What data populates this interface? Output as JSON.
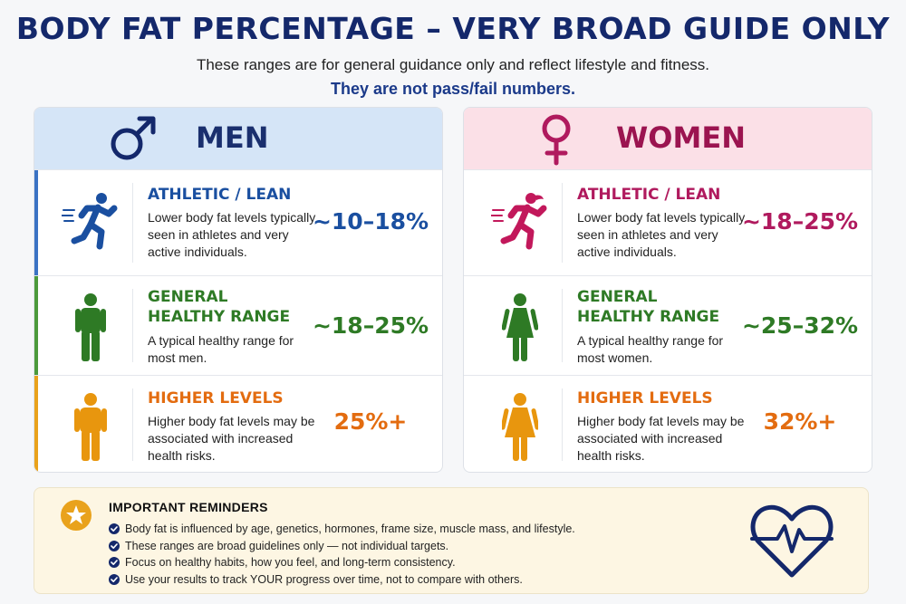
{
  "header": {
    "title": "BODY FAT PERCENTAGE – VERY BROAD GUIDE ONLY",
    "subtitle": "These ranges are for general guidance only and reflect lifestyle and fitness.",
    "emphasis": "They are not pass/fail numbers."
  },
  "colors": {
    "navy": "#14286b",
    "athletic_men": "#1a4fa0",
    "athletic_women": "#b01a5e",
    "healthy": "#2e7a25",
    "higher": "#e36c10",
    "men_header_bg": "#d5e5f7",
    "women_header_bg": "#fbe0e7",
    "reminders_bg": "#fdf6e3"
  },
  "men": {
    "label": "MEN",
    "icon": "male-symbol-icon",
    "rows": [
      {
        "name": "ATHLETIC / LEAN",
        "description": "Lower body fat levels typically seen in athletes and very active individuals.",
        "range": "~10–18%",
        "icon": "running-man-icon"
      },
      {
        "name": "GENERAL HEALTHY RANGE",
        "description": "A typical healthy range for most men.",
        "range": "~18–25%",
        "icon": "standing-man-icon"
      },
      {
        "name": "HIGHER LEVELS",
        "description": "Higher body fat levels may be associated with increased health risks.",
        "range": "25%+",
        "icon": "standing-man-icon"
      }
    ]
  },
  "women": {
    "label": "WOMEN",
    "icon": "female-symbol-icon",
    "rows": [
      {
        "name": "ATHLETIC / LEAN",
        "description": "Lower body fat levels typically seen in athletes and very active individuals.",
        "range": "~18–25%",
        "icon": "running-woman-icon"
      },
      {
        "name": "GENERAL HEALTHY RANGE",
        "description": "A typical healthy range for most women.",
        "range": "~25–32%",
        "icon": "standing-woman-icon"
      },
      {
        "name": "HIGHER LEVELS",
        "description": "Higher body fat levels may be associated with increased health risks.",
        "range": "32%+",
        "icon": "standing-woman-icon"
      }
    ]
  },
  "reminders": {
    "title": "IMPORTANT REMINDERS",
    "items": [
      "Body fat is influenced by age, genetics, hormones, frame size, muscle mass, and lifestyle.",
      "These ranges are broad guidelines only — not individual targets.",
      "Focus on healthy habits, how you feel, and long-term consistency.",
      "Use your results to track YOUR progress over time, not to compare with others."
    ]
  }
}
